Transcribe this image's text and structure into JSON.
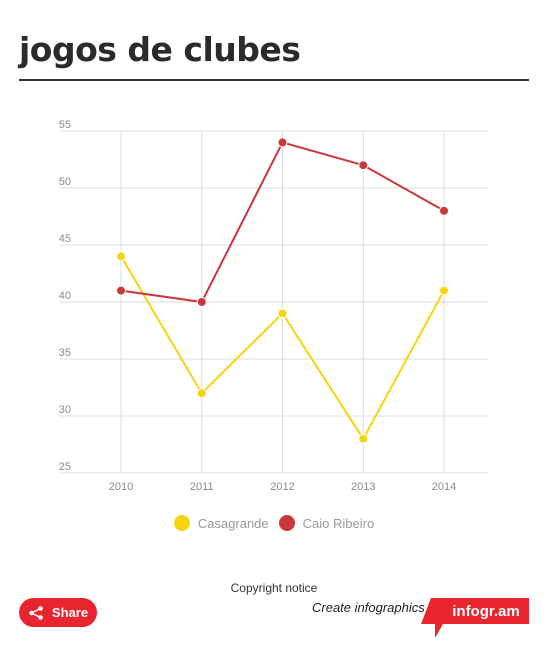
{
  "title": "jogos de clubes",
  "chart_data": {
    "type": "line",
    "title": "jogos de clubes",
    "xlabel": "",
    "ylabel": "",
    "categories": [
      "2010",
      "2011",
      "2012",
      "2013",
      "2014"
    ],
    "ylim": [
      25,
      55
    ],
    "yticks": [
      25,
      30,
      35,
      40,
      45,
      50,
      55
    ],
    "grid": true,
    "legend_position": "bottom",
    "series": [
      {
        "name": "Casagrande",
        "color": "#f6d40e",
        "values": [
          44,
          32,
          39,
          28,
          41
        ]
      },
      {
        "name": "Caio Ribeiro",
        "color": "#c8383a",
        "values": [
          41,
          40,
          54,
          52,
          48
        ]
      }
    ]
  },
  "footer": {
    "copyright": "Copyright notice",
    "share_label": "Share",
    "create_label": "Create infographics",
    "brand_label": "infogr.am"
  },
  "colors": {
    "brand_red": "#e8252e",
    "grid": "#dcdcdc"
  }
}
